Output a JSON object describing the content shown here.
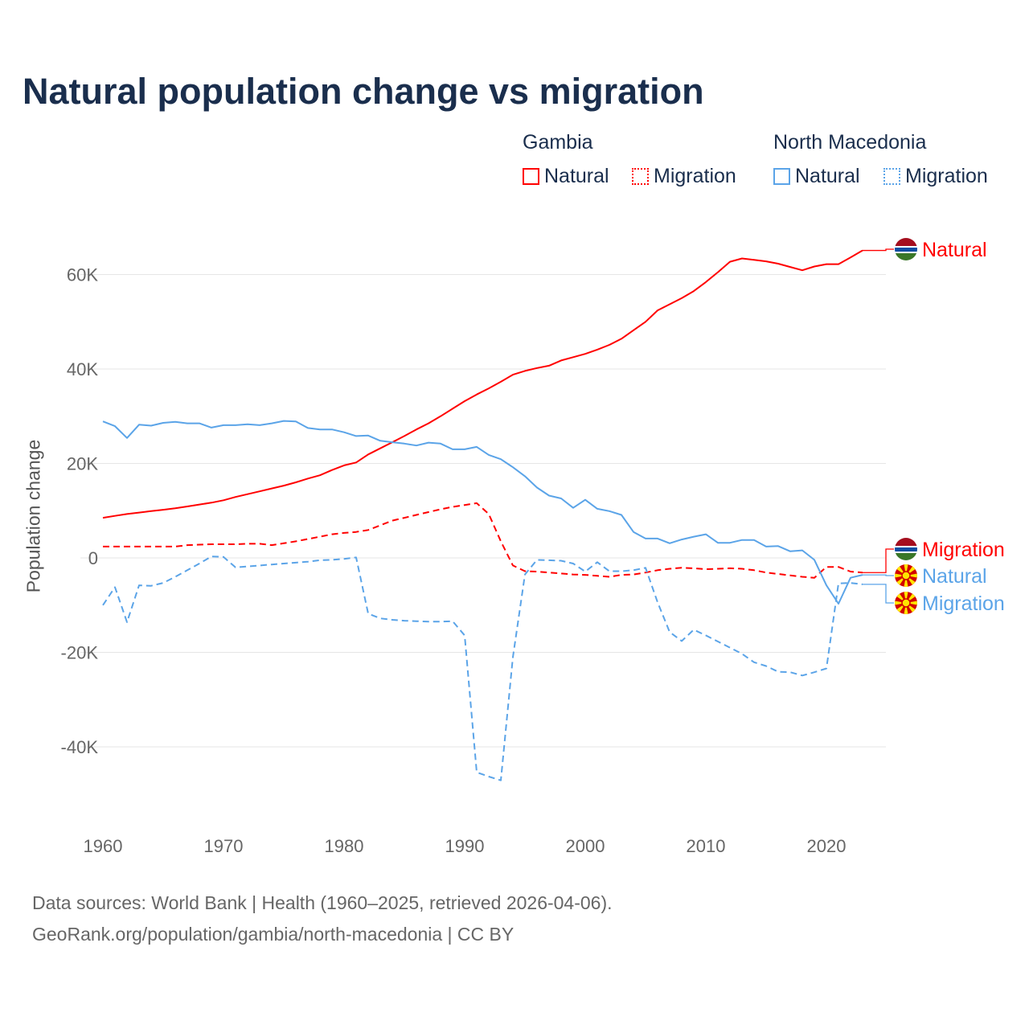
{
  "title": "Natural population change vs migration",
  "legend": {
    "groups": [
      {
        "name": "Gambia",
        "items": [
          "Natural",
          "Migration"
        ]
      },
      {
        "name": "North Macedonia",
        "items": [
          "Natural",
          "Migration"
        ]
      }
    ]
  },
  "colors": {
    "gambia": "#ff0000",
    "north_macedonia": "#5ba4e8",
    "title": "#1a2e4d"
  },
  "footer": {
    "line1": "Data sources: World Bank | Health (1960–2025, retrieved 2026-04-06).",
    "line2": "GeoRank.org/population/gambia/north-macedonia | CC BY"
  },
  "chart_data": {
    "type": "line",
    "title": "Natural population change vs migration",
    "xlabel": "",
    "ylabel": "Population change",
    "xlim": [
      1960,
      2023
    ],
    "ylim": [
      -50000,
      70000
    ],
    "xticks": [
      1960,
      1970,
      1980,
      1990,
      2000,
      2010,
      2020
    ],
    "xtick_labels": [
      "1960",
      "1970",
      "1980",
      "1990",
      "2000",
      "2010",
      "2020"
    ],
    "yticks": [
      -40000,
      -20000,
      0,
      20000,
      40000,
      60000
    ],
    "ytick_labels": [
      "-40K",
      "-20K",
      "0",
      "20K",
      "40K",
      "60K"
    ],
    "grid": true,
    "legend_position": "top-right",
    "x_start": 1960,
    "series": [
      {
        "name": "Gambia Natural",
        "label": "Natural",
        "country": "Gambia",
        "style": "solid",
        "color": "#ff0000",
        "values": [
          8500,
          8900,
          9300,
          9600,
          9900,
          10200,
          10500,
          10900,
          11300,
          11700,
          12200,
          12900,
          13500,
          14100,
          14700,
          15300,
          16000,
          16800,
          17500,
          18600,
          19600,
          20200,
          21900,
          23200,
          24500,
          25800,
          27200,
          28500,
          30000,
          31600,
          33200,
          34600,
          35900,
          37300,
          38800,
          39600,
          40200,
          40700,
          41800,
          42500,
          43200,
          44100,
          45100,
          46400,
          48200,
          50000,
          52400,
          53700,
          55000,
          56500,
          58400,
          60500,
          62700,
          63400,
          63100,
          62800,
          62300,
          61600,
          60900,
          61700,
          62200,
          62200,
          63600,
          65100
        ]
      },
      {
        "name": "Gambia Migration",
        "label": "Migration",
        "country": "Gambia",
        "style": "dashed",
        "color": "#ff0000",
        "values": [
          2400,
          2400,
          2400,
          2400,
          2400,
          2400,
          2400,
          2700,
          2800,
          2900,
          2900,
          2900,
          3000,
          3000,
          2700,
          3100,
          3500,
          4000,
          4500,
          5000,
          5300,
          5500,
          5900,
          6900,
          7900,
          8500,
          9100,
          9700,
          10300,
          10800,
          11200,
          11600,
          9300,
          3500,
          -1600,
          -2800,
          -2900,
          -3100,
          -3300,
          -3500,
          -3600,
          -3800,
          -4000,
          -3600,
          -3500,
          -3100,
          -2600,
          -2300,
          -2100,
          -2200,
          -2400,
          -2300,
          -2200,
          -2300,
          -2600,
          -3100,
          -3400,
          -3700,
          -4000,
          -4200,
          -1900,
          -1900,
          -2900,
          -3100
        ]
      },
      {
        "name": "North Macedonia Natural",
        "label": "Natural",
        "country": "North Macedonia",
        "style": "solid",
        "color": "#5ba4e8",
        "values": [
          28900,
          27900,
          25400,
          28200,
          28000,
          28600,
          28800,
          28500,
          28500,
          27600,
          28100,
          28100,
          28300,
          28100,
          28500,
          29000,
          28900,
          27500,
          27200,
          27200,
          26600,
          25800,
          25900,
          24800,
          24500,
          24200,
          23800,
          24400,
          24200,
          23000,
          23000,
          23500,
          21800,
          20900,
          19200,
          17300,
          14900,
          13200,
          12600,
          10600,
          12300,
          10400,
          9900,
          9100,
          5500,
          4100,
          4100,
          3100,
          3900,
          4500,
          5000,
          3200,
          3200,
          3800,
          3800,
          2400,
          2500,
          1400,
          1600,
          -400,
          -5800,
          -9700,
          -4200,
          -3600
        ]
      },
      {
        "name": "North Macedonia Migration",
        "label": "Migration",
        "country": "North Macedonia",
        "style": "dashed",
        "color": "#5ba4e8",
        "values": [
          -10000,
          -6200,
          -13600,
          -5800,
          -5900,
          -5300,
          -4000,
          -2600,
          -1200,
          300,
          200,
          -2000,
          -1800,
          -1600,
          -1400,
          -1200,
          -1000,
          -800,
          -500,
          -400,
          -200,
          100,
          -11800,
          -12800,
          -13100,
          -13300,
          -13400,
          -13500,
          -13500,
          -13400,
          -16400,
          -45400,
          -46300,
          -47100,
          -21000,
          -3500,
          -400,
          -500,
          -600,
          -1200,
          -2900,
          -900,
          -2800,
          -2800,
          -2600,
          -2100,
          -9400,
          -15700,
          -17600,
          -15200,
          -16400,
          -17700,
          -19000,
          -20300,
          -22100,
          -22900,
          -24100,
          -24200,
          -24900,
          -24200,
          -23400,
          -5400,
          -5300,
          -5600
        ]
      }
    ]
  }
}
